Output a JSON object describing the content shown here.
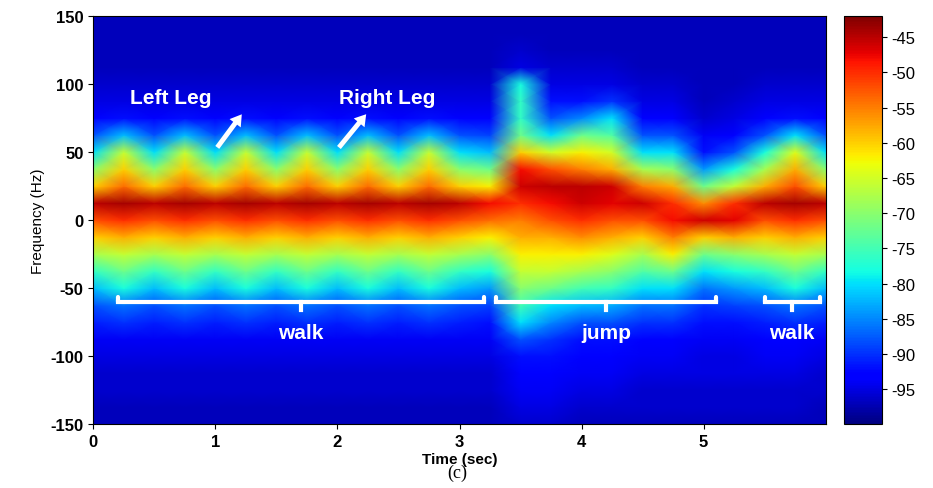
{
  "chart_data": {
    "type": "heatmap",
    "xlabel": "Time (sec)",
    "ylabel": "Frequency (Hz)",
    "panel_label": "(c)",
    "xlim": [
      0,
      6
    ],
    "xticks": [
      0,
      1,
      2,
      3,
      4,
      5
    ],
    "ylim": [
      -150,
      150
    ],
    "yticks": [
      -150,
      -100,
      -50,
      0,
      50,
      100,
      150
    ],
    "x": [
      0,
      0.25,
      0.5,
      0.75,
      1.0,
      1.25,
      1.5,
      1.75,
      2.0,
      2.25,
      2.5,
      2.75,
      3.0,
      3.25,
      3.5,
      3.75,
      4.0,
      4.25,
      4.5,
      4.75,
      5.0,
      5.25,
      5.5,
      5.75,
      6.0
    ],
    "y": [
      -150,
      -137.5,
      -125,
      -112.5,
      -100,
      -87.5,
      -75,
      -62.5,
      -50,
      -37.5,
      -25,
      -12.5,
      0,
      12.5,
      25,
      37.5,
      50,
      62.5,
      75,
      87.5,
      100,
      112.5,
      125,
      137.5,
      150
    ],
    "z": [
      [
        -97,
        -97,
        -96,
        -96,
        -95,
        -94,
        -91,
        -88,
        -82,
        -76,
        -68,
        -60,
        -52,
        -45,
        -60,
        -70,
        -80,
        -88,
        -93,
        -95,
        -96,
        -97,
        -97,
        -97,
        -97
      ],
      [
        -97,
        -97,
        -96,
        -96,
        -95,
        -94,
        -90,
        -86,
        -78,
        -72,
        -66,
        -58,
        -50,
        -44,
        -54,
        -60,
        -66,
        -82,
        -92,
        -95,
        -96,
        -97,
        -97,
        -97,
        -97
      ],
      [
        -97,
        -97,
        -96,
        -96,
        -95,
        -94,
        -91,
        -88,
        -82,
        -76,
        -68,
        -60,
        -52,
        -45,
        -60,
        -70,
        -80,
        -88,
        -93,
        -95,
        -96,
        -97,
        -97,
        -97,
        -97
      ],
      [
        -97,
        -97,
        -96,
        -96,
        -95,
        -94,
        -90,
        -86,
        -78,
        -72,
        -66,
        -58,
        -50,
        -44,
        -54,
        -60,
        -66,
        -82,
        -92,
        -95,
        -96,
        -97,
        -97,
        -97,
        -97
      ],
      [
        -97,
        -97,
        -96,
        -96,
        -95,
        -94,
        -91,
        -88,
        -82,
        -76,
        -68,
        -60,
        -52,
        -45,
        -60,
        -70,
        -80,
        -88,
        -93,
        -95,
        -96,
        -97,
        -97,
        -97,
        -97
      ],
      [
        -97,
        -97,
        -96,
        -96,
        -95,
        -94,
        -90,
        -86,
        -78,
        -72,
        -66,
        -58,
        -50,
        -44,
        -54,
        -60,
        -66,
        -82,
        -92,
        -95,
        -96,
        -97,
        -97,
        -97,
        -97
      ],
      [
        -97,
        -97,
        -96,
        -96,
        -95,
        -94,
        -91,
        -88,
        -82,
        -76,
        -68,
        -60,
        -52,
        -45,
        -60,
        -70,
        -80,
        -88,
        -93,
        -95,
        -96,
        -97,
        -97,
        -97,
        -97
      ],
      [
        -97,
        -97,
        -96,
        -96,
        -95,
        -94,
        -90,
        -86,
        -78,
        -72,
        -66,
        -58,
        -50,
        -44,
        -54,
        -60,
        -66,
        -82,
        -92,
        -95,
        -96,
        -97,
        -97,
        -97,
        -97
      ],
      [
        -97,
        -97,
        -96,
        -96,
        -95,
        -94,
        -91,
        -88,
        -82,
        -76,
        -68,
        -60,
        -52,
        -45,
        -60,
        -70,
        -80,
        -88,
        -93,
        -95,
        -96,
        -97,
        -97,
        -97,
        -97
      ],
      [
        -97,
        -97,
        -96,
        -96,
        -95,
        -94,
        -90,
        -86,
        -78,
        -72,
        -66,
        -58,
        -50,
        -44,
        -54,
        -60,
        -66,
        -82,
        -92,
        -95,
        -96,
        -97,
        -97,
        -97,
        -97
      ],
      [
        -97,
        -97,
        -96,
        -96,
        -95,
        -94,
        -91,
        -88,
        -82,
        -76,
        -68,
        -60,
        -52,
        -45,
        -60,
        -70,
        -80,
        -88,
        -93,
        -95,
        -96,
        -97,
        -97,
        -97,
        -97
      ],
      [
        -97,
        -97,
        -96,
        -96,
        -95,
        -94,
        -90,
        -86,
        -78,
        -72,
        -66,
        -58,
        -50,
        -44,
        -54,
        -60,
        -66,
        -82,
        -92,
        -95,
        -96,
        -97,
        -97,
        -97,
        -97
      ],
      [
        -97,
        -97,
        -96,
        -96,
        -95,
        -94,
        -91,
        -88,
        -82,
        -76,
        -68,
        -60,
        -52,
        -45,
        -60,
        -70,
        -80,
        -88,
        -93,
        -95,
        -96,
        -97,
        -97,
        -97,
        -97
      ],
      [
        -97,
        -97,
        -96,
        -96,
        -95,
        -94,
        -92,
        -89,
        -84,
        -78,
        -70,
        -62,
        -54,
        -48,
        -62,
        -72,
        -82,
        -89,
        -93,
        -95,
        -96,
        -97,
        -97,
        -97,
        -97
      ],
      [
        -96,
        -95,
        -94,
        -93,
        -92,
        -88,
        -80,
        -75,
        -70,
        -66,
        -62,
        -58,
        -55,
        -50,
        -46,
        -48,
        -60,
        -72,
        -76,
        -76,
        -78,
        -95,
        -96,
        -97,
        -97
      ],
      [
        -96,
        -95,
        -94,
        -93,
        -92,
        -90,
        -85,
        -80,
        -72,
        -66,
        -62,
        -58,
        -52,
        -48,
        -45,
        -52,
        -65,
        -80,
        -88,
        -92,
        -95,
        -96,
        -97,
        -97,
        -97
      ],
      [
        -97,
        -96,
        -95,
        -94,
        -93,
        -92,
        -88,
        -82,
        -75,
        -68,
        -62,
        -56,
        -50,
        -46,
        -45,
        -55,
        -62,
        -72,
        -85,
        -92,
        -95,
        -96,
        -97,
        -97,
        -97
      ],
      [
        -97,
        -96,
        -95,
        -94,
        -93,
        -92,
        -88,
        -83,
        -76,
        -70,
        -64,
        -58,
        -52,
        -47,
        -46,
        -58,
        -65,
        -74,
        -80,
        -90,
        -95,
        -96,
        -97,
        -97,
        -97
      ],
      [
        -97,
        -96,
        -96,
        -95,
        -94,
        -93,
        -90,
        -86,
        -80,
        -74,
        -68,
        -60,
        -52,
        -46,
        -55,
        -68,
        -80,
        -88,
        -93,
        -95,
        -96,
        -97,
        -97,
        -97,
        -97
      ],
      [
        -97,
        -96,
        -96,
        -95,
        -94,
        -93,
        -90,
        -86,
        -80,
        -72,
        -62,
        -55,
        -48,
        -50,
        -58,
        -70,
        -80,
        -88,
        -93,
        -95,
        -96,
        -97,
        -97,
        -97,
        -97
      ],
      [
        -97,
        -96,
        -96,
        -95,
        -95,
        -94,
        -92,
        -90,
        -86,
        -80,
        -72,
        -60,
        -46,
        -56,
        -72,
        -84,
        -92,
        -94,
        -96,
        -97,
        -97,
        -97,
        -97,
        -97,
        -97
      ],
      [
        -97,
        -96,
        -96,
        -95,
        -95,
        -94,
        -92,
        -89,
        -84,
        -78,
        -70,
        -58,
        -47,
        -50,
        -66,
        -78,
        -88,
        -93,
        -95,
        -96,
        -97,
        -97,
        -97,
        -97,
        -97
      ],
      [
        -97,
        -96,
        -96,
        -95,
        -94,
        -93,
        -91,
        -88,
        -82,
        -76,
        -68,
        -60,
        -52,
        -45,
        -58,
        -68,
        -78,
        -88,
        -93,
        -95,
        -96,
        -97,
        -97,
        -97,
        -97
      ],
      [
        -97,
        -96,
        -96,
        -95,
        -94,
        -93,
        -90,
        -86,
        -78,
        -72,
        -66,
        -58,
        -50,
        -44,
        -52,
        -58,
        -64,
        -80,
        -92,
        -95,
        -96,
        -97,
        -97,
        -97,
        -97
      ],
      [
        -97,
        -97,
        -96,
        -96,
        -95,
        -94,
        -91,
        -88,
        -82,
        -76,
        -68,
        -60,
        -52,
        -45,
        -60,
        -70,
        -80,
        -88,
        -93,
        -95,
        -96,
        -97,
        -97,
        -97,
        -97
      ]
    ],
    "colorbar": {
      "range": [
        -100,
        -42
      ],
      "ticks": [
        -45,
        -50,
        -55,
        -60,
        -65,
        -70,
        -75,
        -80,
        -85,
        -90,
        -95
      ]
    },
    "annotations": [
      "Left Leg",
      "Right Leg"
    ],
    "segments": [
      {
        "label": "walk",
        "start": 0.2,
        "end": 3.2
      },
      {
        "label": "jump",
        "start": 3.3,
        "end": 5.1
      },
      {
        "label": "walk",
        "start": 5.5,
        "end": 5.95
      }
    ]
  }
}
